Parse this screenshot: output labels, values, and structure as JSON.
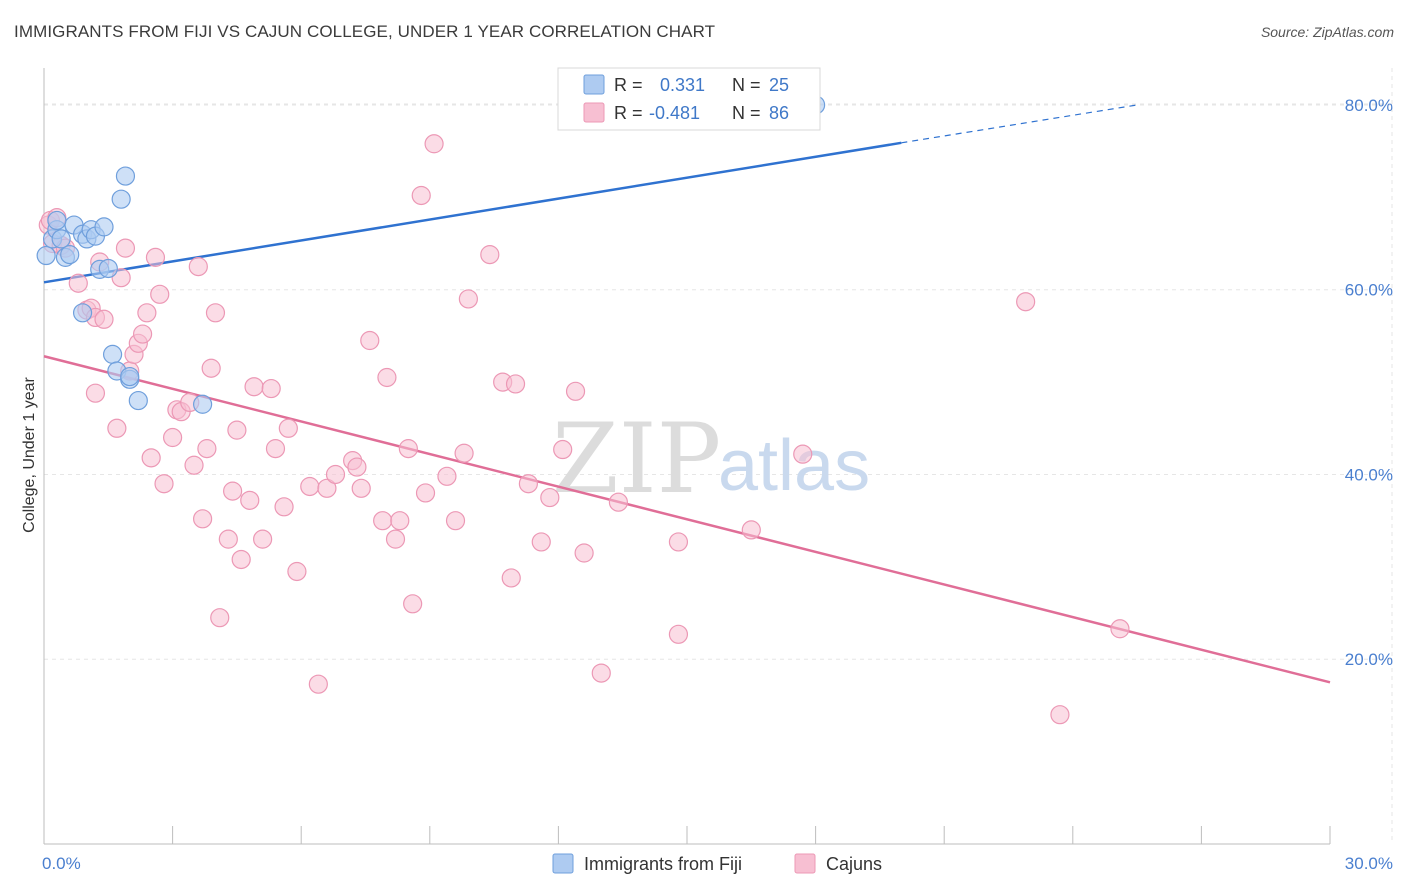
{
  "header": {
    "title": "IMMIGRANTS FROM FIJI VS CAJUN COLLEGE, UNDER 1 YEAR CORRELATION CHART",
    "source": "Source: ZipAtlas.com"
  },
  "watermark": {
    "zip": "ZIP",
    "atlas": "atlas"
  },
  "legend": {
    "r_label": "R =",
    "n_label": "N =",
    "fiji": {
      "r": "0.331",
      "n": "25"
    },
    "cajun": {
      "r": "-0.481",
      "n": "86"
    }
  },
  "bottom_legend": {
    "fiji": "Immigrants from Fiji",
    "cajun": "Cajuns"
  },
  "colors": {
    "fiji_fill": "#aecbf1",
    "fiji_stroke": "#6f9fdc",
    "fiji_line": "#2f72d0",
    "cajun_fill": "#f7bfd2",
    "cajun_stroke": "#ec98b5",
    "cajun_line": "#e06e97",
    "grid": "#e6e6e6",
    "tick_label": "#4a7fcf"
  },
  "chart_data": {
    "type": "scatter",
    "title": "IMMIGRANTS FROM FIJI VS CAJUN COLLEGE, UNDER 1 YEAR CORRELATION CHART",
    "xlabel": "",
    "ylabel": "College, Under 1 year",
    "xlim": [
      0,
      30
    ],
    "ylim": [
      0,
      84
    ],
    "x_tick_labels": [
      "0.0%",
      "30.0%"
    ],
    "y_ticks": [
      20,
      40,
      60,
      80
    ],
    "y_tick_labels": [
      "20.0%",
      "40.0%",
      "60.0%",
      "80.0%"
    ],
    "grid": true,
    "legend_placement": "top-center",
    "series": [
      {
        "name": "Immigrants from Fiji",
        "r": 0.331,
        "n": 25,
        "trend": {
          "x": [
            0,
            20
          ],
          "y": [
            60.8,
            75.9
          ],
          "dashed_to": [
            25.5,
            80.0
          ]
        },
        "points": [
          [
            0.05,
            63.7
          ],
          [
            0.2,
            65.5
          ],
          [
            0.3,
            66.5
          ],
          [
            0.4,
            65.5
          ],
          [
            0.5,
            63.5
          ],
          [
            0.6,
            63.8
          ],
          [
            0.7,
            67.0
          ],
          [
            0.9,
            57.5
          ],
          [
            0.9,
            66.0
          ],
          [
            1.0,
            65.5
          ],
          [
            1.1,
            66.5
          ],
          [
            1.2,
            65.8
          ],
          [
            1.3,
            62.2
          ],
          [
            1.4,
            66.8
          ],
          [
            1.5,
            62.3
          ],
          [
            1.6,
            53.0
          ],
          [
            1.7,
            51.2
          ],
          [
            1.8,
            69.8
          ],
          [
            1.9,
            72.3
          ],
          [
            2.0,
            50.3
          ],
          [
            2.0,
            50.6
          ],
          [
            2.2,
            48.0
          ],
          [
            3.7,
            47.6
          ],
          [
            18.0,
            80.0
          ],
          [
            0.3,
            67.5
          ]
        ]
      },
      {
        "name": "Cajuns",
        "r": -0.481,
        "n": 86,
        "trend": {
          "x": [
            0,
            30
          ],
          "y": [
            52.8,
            17.5
          ]
        },
        "points": [
          [
            0.1,
            67.0
          ],
          [
            0.15,
            67.5
          ],
          [
            0.2,
            65.0
          ],
          [
            0.3,
            67.8
          ],
          [
            0.4,
            64.8
          ],
          [
            0.5,
            64.5
          ],
          [
            0.8,
            60.7
          ],
          [
            1.0,
            57.8
          ],
          [
            1.1,
            58.0
          ],
          [
            1.2,
            57.0
          ],
          [
            1.3,
            63.0
          ],
          [
            1.4,
            56.8
          ],
          [
            1.2,
            48.8
          ],
          [
            1.8,
            61.3
          ],
          [
            1.9,
            64.5
          ],
          [
            2.0,
            51.2
          ],
          [
            1.7,
            45.0
          ],
          [
            2.1,
            53.0
          ],
          [
            2.2,
            54.2
          ],
          [
            2.3,
            55.2
          ],
          [
            2.4,
            57.5
          ],
          [
            2.5,
            41.8
          ],
          [
            2.6,
            63.5
          ],
          [
            2.7,
            59.5
          ],
          [
            2.8,
            39.0
          ],
          [
            3.0,
            44.0
          ],
          [
            3.1,
            47.0
          ],
          [
            3.2,
            46.8
          ],
          [
            3.4,
            47.8
          ],
          [
            3.5,
            41.0
          ],
          [
            3.6,
            62.5
          ],
          [
            3.7,
            35.2
          ],
          [
            3.8,
            42.8
          ],
          [
            3.9,
            51.5
          ],
          [
            4.0,
            57.5
          ],
          [
            4.1,
            24.5
          ],
          [
            4.3,
            33.0
          ],
          [
            4.4,
            38.2
          ],
          [
            4.5,
            44.8
          ],
          [
            4.6,
            30.8
          ],
          [
            4.8,
            37.2
          ],
          [
            4.9,
            49.5
          ],
          [
            5.1,
            33.0
          ],
          [
            5.3,
            49.3
          ],
          [
            5.4,
            42.8
          ],
          [
            5.6,
            36.5
          ],
          [
            5.7,
            45.0
          ],
          [
            5.9,
            29.5
          ],
          [
            6.2,
            38.7
          ],
          [
            6.4,
            17.3
          ],
          [
            6.6,
            38.5
          ],
          [
            6.8,
            40.0
          ],
          [
            7.2,
            41.5
          ],
          [
            7.3,
            40.8
          ],
          [
            7.4,
            38.5
          ],
          [
            7.6,
            54.5
          ],
          [
            7.9,
            35.0
          ],
          [
            8.0,
            50.5
          ],
          [
            8.2,
            33.0
          ],
          [
            8.3,
            35.0
          ],
          [
            8.5,
            42.8
          ],
          [
            8.6,
            26.0
          ],
          [
            8.8,
            70.2
          ],
          [
            8.9,
            38.0
          ],
          [
            9.1,
            75.8
          ],
          [
            9.4,
            39.8
          ],
          [
            9.6,
            35.0
          ],
          [
            9.8,
            42.3
          ],
          [
            9.9,
            59.0
          ],
          [
            10.4,
            63.8
          ],
          [
            10.7,
            50.0
          ],
          [
            10.9,
            28.8
          ],
          [
            11.0,
            49.8
          ],
          [
            11.3,
            39.0
          ],
          [
            11.6,
            32.7
          ],
          [
            11.8,
            37.5
          ],
          [
            12.1,
            42.7
          ],
          [
            12.4,
            49.0
          ],
          [
            12.6,
            31.5
          ],
          [
            13.0,
            18.5
          ],
          [
            13.4,
            37.0
          ],
          [
            14.8,
            22.7
          ],
          [
            14.8,
            32.7
          ],
          [
            16.5,
            34.0
          ],
          [
            17.7,
            42.2
          ],
          [
            22.9,
            58.7
          ]
        ]
      }
    ],
    "extra_cajun_points": [
      [
        23.7,
        14.0
      ],
      [
        25.1,
        23.3
      ]
    ]
  }
}
